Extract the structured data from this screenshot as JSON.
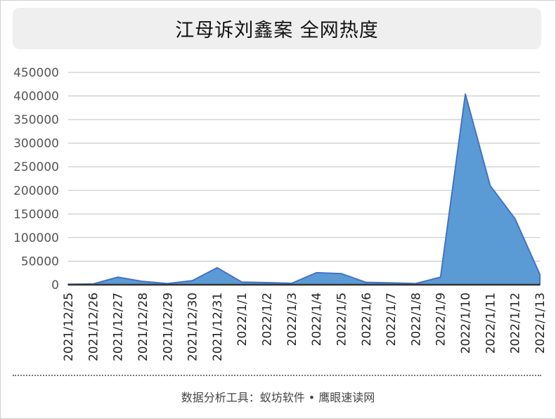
{
  "chart_data": {
    "type": "area",
    "title": "江母诉刘鑫案 全网热度",
    "categories": [
      "2021/12/25",
      "2021/12/26",
      "2021/12/27",
      "2021/12/28",
      "2021/12/29",
      "2021/12/30",
      "2021/12/31",
      "2022/1/1",
      "2022/1/2",
      "2022/1/3",
      "2022/1/4",
      "2022/1/5",
      "2022/1/6",
      "2022/1/7",
      "2022/1/8",
      "2022/1/9",
      "2022/1/10",
      "2022/1/11",
      "2022/1/12",
      "2022/1/13"
    ],
    "values": [
      1000,
      1500,
      16000,
      7000,
      2500,
      8500,
      36000,
      5500,
      4500,
      3000,
      25500,
      23500,
      5000,
      4000,
      2500,
      16000,
      404000,
      210000,
      140000,
      22000
    ],
    "ylim": [
      0,
      450000
    ],
    "yticks": [
      0,
      50000,
      100000,
      150000,
      200000,
      250000,
      300000,
      350000,
      400000,
      450000
    ],
    "grid": true,
    "fill_color": "#5b9bd5",
    "line_color": "#4472c4"
  },
  "footer": "数据分析工具：蚁坊软件 • 鹰眼速读网"
}
